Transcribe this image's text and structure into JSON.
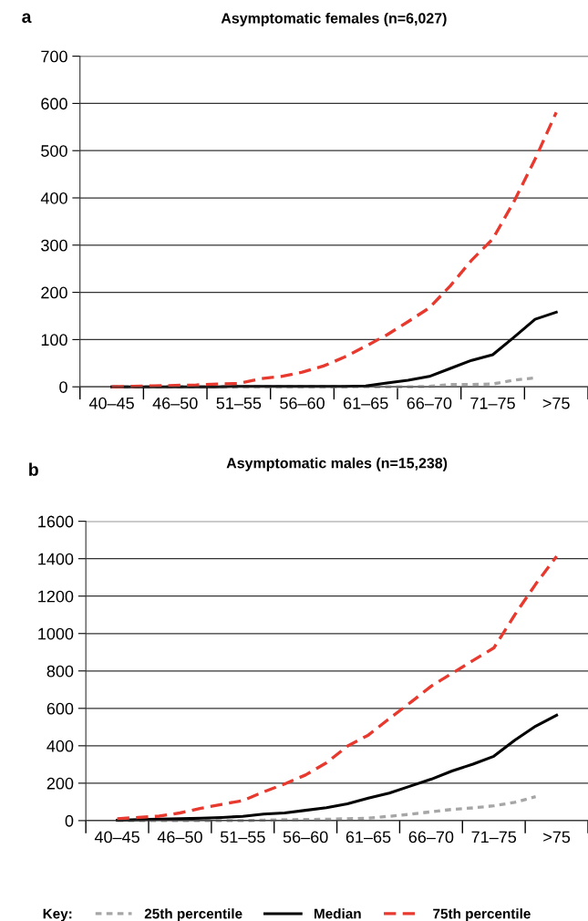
{
  "chart_data": [
    {
      "type": "line",
      "title": "Asymptomatic females (n=6,027)",
      "annotations": [
        "a"
      ],
      "categories": [
        null,
        "40–45",
        null,
        null,
        "46–50",
        null,
        null,
        "51–55",
        null,
        null,
        "56–60",
        null,
        null,
        "61–65",
        null,
        null,
        "66–70",
        null,
        null,
        "71–75",
        null,
        null,
        ">75",
        null
      ],
      "ylim": [
        0,
        700
      ],
      "yticks": [
        0,
        100,
        200,
        300,
        400,
        500,
        600,
        700
      ],
      "grid": "y",
      "series": [
        {
          "color": "#a6a6a6",
          "line_style": "dotted",
          "values": [
            null,
            0,
            0,
            0,
            0,
            0,
            0,
            0,
            0,
            0,
            0,
            0,
            0,
            0,
            0,
            0,
            1,
            5,
            5,
            6,
            14,
            19,
            null,
            null
          ]
        },
        {
          "color": "#000000",
          "line_style": "solid",
          "values": [
            null,
            0,
            0,
            0,
            0,
            0,
            0,
            1,
            1,
            1,
            1,
            1,
            1,
            2,
            8,
            14,
            22,
            39,
            56,
            68,
            105,
            143,
            158,
            null
          ]
        },
        {
          "color": "#e8392f",
          "line_style": "dashed",
          "values": [
            null,
            0,
            1,
            2,
            3,
            4,
            6,
            7,
            17,
            22,
            31,
            44,
            63,
            86,
            110,
            138,
            167,
            214,
            268,
            313,
            392,
            482,
            581,
            null
          ]
        }
      ]
    },
    {
      "type": "line",
      "title": "Asymptomatic males (n=15,238)",
      "annotations": [
        "b"
      ],
      "categories": [
        null,
        "40–45",
        null,
        null,
        "46–50",
        null,
        null,
        "51–55",
        null,
        null,
        "56–60",
        null,
        null,
        "61–65",
        null,
        null,
        "66–70",
        null,
        null,
        "71–75",
        null,
        null,
        ">75",
        null
      ],
      "ylim": [
        0,
        1600
      ],
      "yticks": [
        0,
        200,
        400,
        600,
        800,
        1000,
        1200,
        1400,
        1600
      ],
      "grid": "y",
      "legend": "bottom",
      "legend_title": "Key:",
      "series": [
        {
          "name": "25th percentile",
          "color": "#a6a6a6",
          "line_style": "dotted",
          "values": [
            null,
            0,
            0,
            0,
            0,
            0,
            0,
            0,
            3,
            5,
            6,
            7,
            10,
            13,
            23,
            34,
            47,
            60,
            68,
            79,
            98,
            128,
            null,
            null
          ]
        },
        {
          "name": "Median",
          "color": "#000000",
          "line_style": "solid",
          "values": [
            null,
            2,
            5,
            8,
            10,
            13,
            17,
            23,
            35,
            41,
            55,
            69,
            90,
            120,
            147,
            184,
            221,
            265,
            302,
            344,
            430,
            505,
            563,
            null
          ]
        },
        {
          "name": "75th percentile",
          "color": "#e8392f",
          "line_style": "dashed",
          "values": [
            null,
            10,
            17,
            24,
            41,
            66,
            87,
            107,
            154,
            196,
            244,
            309,
            398,
            457,
            545,
            630,
            718,
            787,
            856,
            923,
            1100,
            1264,
            1413,
            null
          ]
        }
      ]
    }
  ]
}
